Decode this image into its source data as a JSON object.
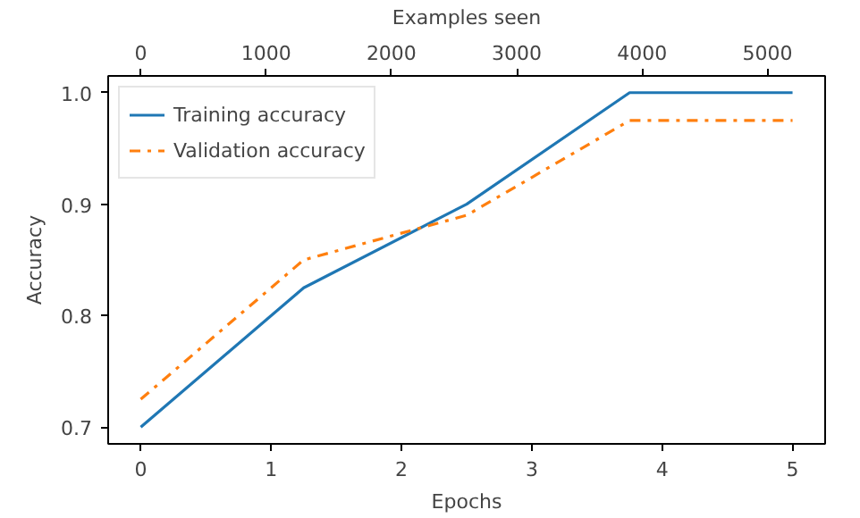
{
  "chart_data": {
    "type": "line",
    "xlabel": "Epochs",
    "ylabel": "Accuracy",
    "x2label": "Examples seen",
    "x": [
      0,
      1.25,
      2.5,
      3.75,
      5
    ],
    "series": [
      {
        "name": "Training accuracy",
        "color": "#1f77b4",
        "values": [
          0.7,
          0.825,
          0.9,
          1.0,
          1.0
        ],
        "line_style": "solid"
      },
      {
        "name": "Validation accuracy",
        "color": "#ff7f0e",
        "values": [
          0.725,
          0.85,
          0.89,
          0.975,
          0.975
        ],
        "line_style": "dashdot"
      }
    ],
    "xlim": [
      -0.25,
      5.25
    ],
    "xticks": [
      0,
      1,
      2,
      3,
      4,
      5
    ],
    "x2lim": [
      -260,
      5460
    ],
    "x2ticks": [
      0,
      1000,
      2000,
      3000,
      4000,
      5000
    ],
    "ylim": [
      0.685,
      1.015
    ],
    "yticks": [
      0.7,
      0.8,
      0.9,
      {
        "value": 1.0,
        "label": "1.0"
      }
    ],
    "legend": "top left",
    "grid": false
  }
}
